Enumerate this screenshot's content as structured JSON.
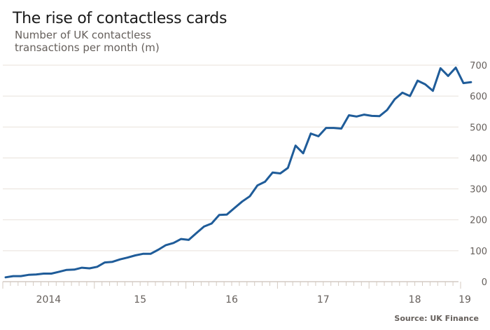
{
  "chart_data": {
    "type": "line",
    "title": "The rise of contactless cards",
    "subtitle": "Number of UK contactless transactions per month (m)",
    "source": "Source: UK Finance",
    "xlabel": "",
    "ylabel": "",
    "ylim": [
      0,
      700
    ],
    "yticks": [
      0,
      100,
      200,
      300,
      400,
      500,
      600,
      700
    ],
    "xtick_labels": [
      "2014",
      "15",
      "16",
      "17",
      "18",
      "19"
    ],
    "grid": true,
    "line_color": "#1f5c99",
    "start": "2014-01",
    "frequency": "monthly",
    "series": [
      {
        "name": "Contactless transactions (m)",
        "values": [
          14,
          18,
          18,
          22,
          23,
          26,
          26,
          32,
          38,
          39,
          45,
          43,
          48,
          62,
          64,
          72,
          78,
          85,
          90,
          90,
          103,
          118,
          125,
          138,
          135,
          157,
          178,
          188,
          216,
          217,
          238,
          259,
          276,
          311,
          323,
          353,
          350,
          368,
          440,
          415,
          479,
          470,
          497,
          497,
          495,
          538,
          534,
          540,
          536,
          535,
          555,
          590,
          611,
          600,
          650,
          638,
          617,
          690,
          665,
          692,
          642,
          645
        ]
      }
    ]
  }
}
